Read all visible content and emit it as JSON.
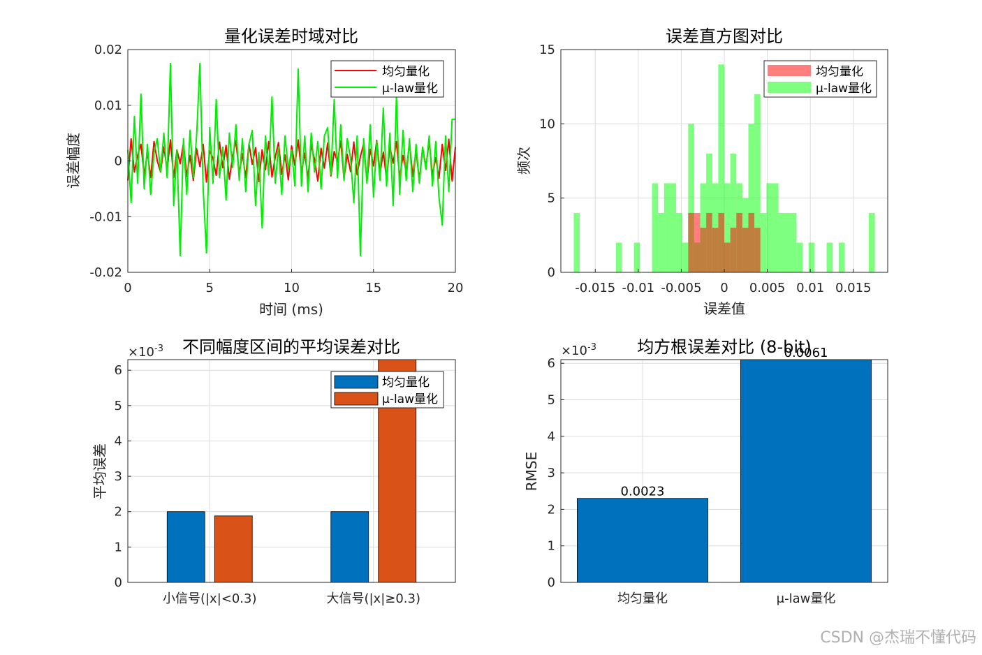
{
  "watermark": "CSDN @杰瑞不懂代码",
  "chart_data": [
    {
      "id": "time",
      "type": "line",
      "title": "量化误差时域对比",
      "xlabel": "时间 (ms)",
      "ylabel": "误差幅度",
      "xlim": [
        0,
        20
      ],
      "ylim": [
        -0.02,
        0.02
      ],
      "xticks": [
        0,
        5,
        10,
        15,
        20
      ],
      "xtick_labels": [
        "0",
        "5",
        "10",
        "15",
        "20"
      ],
      "yticks": [
        -0.02,
        -0.01,
        0,
        0.01,
        0.02
      ],
      "ytick_labels": [
        "-0.02",
        "-0.01",
        "0",
        "0.01",
        "0.02"
      ],
      "grid": true,
      "legend": "top-right",
      "series": [
        {
          "name": "均匀量化",
          "color": "#ff0000",
          "x": [
            0,
            0.2,
            0.4,
            0.6,
            0.8,
            1,
            1.2,
            1.4,
            1.6,
            1.8,
            2,
            2.2,
            2.4,
            2.6,
            2.8,
            3,
            3.2,
            3.4,
            3.6,
            3.8,
            4,
            4.2,
            4.4,
            4.6,
            4.8,
            5,
            5.2,
            5.4,
            5.6,
            5.8,
            6,
            6.2,
            6.4,
            6.6,
            6.8,
            7,
            7.2,
            7.4,
            7.6,
            7.8,
            8,
            8.2,
            8.4,
            8.6,
            8.8,
            9,
            9.2,
            9.4,
            9.6,
            9.8,
            10,
            10.2,
            10.4,
            10.6,
            10.8,
            11,
            11.2,
            11.4,
            11.6,
            11.8,
            12,
            12.2,
            12.4,
            12.6,
            12.8,
            13,
            13.2,
            13.4,
            13.6,
            13.8,
            14,
            14.2,
            14.4,
            14.6,
            14.8,
            15,
            15.2,
            15.4,
            15.6,
            15.8,
            16,
            16.2,
            16.4,
            16.6,
            16.8,
            17,
            17.2,
            17.4,
            17.6,
            17.8,
            18,
            18.2,
            18.4,
            18.6,
            18.8,
            19,
            19.2,
            19.4,
            19.6,
            19.8,
            20
          ],
          "values": [
            -0.0035,
            0.004,
            -0.002,
            0.001,
            0.003,
            -0.0025,
            0.0015,
            -0.003,
            0.0035,
            0,
            -0.002,
            0.0025,
            -0.0015,
            0.0038,
            -0.003,
            0.002,
            -0.0005,
            0.0032,
            -0.0028,
            0.001,
            -0.0035,
            0.0022,
            -0.001,
            0.003,
            -0.0038,
            0.0018,
            0.0005,
            -0.0026,
            0.0034,
            -0.0012,
            0.0028,
            -0.0033,
            0.0009,
            0.0036,
            -0.0022,
            0.0013,
            -0.003,
            0.0031,
            -0.0006,
            0.0024,
            -0.0037,
            0.002,
            -0.0016,
            0.0035,
            -0.0029,
            0.0007,
            0.0033,
            -0.0024,
            0.0011,
            -0.0034,
            0.0027,
            -0.0008,
            0.0038,
            -0.0021,
            0.0014,
            -0.0031,
            0.0029,
            0.0003,
            -0.0036,
            0.0023,
            -0.0013,
            0.0032,
            -0.0027,
            0.0017,
            -0.0002,
            0.0036,
            -0.0032,
            0.0012,
            -0.0019,
            0.0034,
            -0.0025,
            0.0008,
            0.0031,
            -0.0037,
            0.0021,
            -0.0009,
            0.0037,
            -0.0023,
            0.0016,
            -0.0033,
            0.0026,
            -0.0004,
            0.0035,
            -0.003,
            0.001,
            -0.002,
            0.0033,
            -0.0028,
            0.0019,
            -0.0035,
            0.0024,
            -0.0011,
            0.0036,
            -0.0026,
            0.0006,
            -0.0031,
            0.003,
            -0.0017,
            0.0039,
            -0.0036,
            0.0025
          ]
        },
        {
          "name": "μ-law量化",
          "color": "#00ee00",
          "x": [
            0,
            0.2,
            0.4,
            0.6,
            0.8,
            1,
            1.2,
            1.4,
            1.6,
            1.8,
            2,
            2.2,
            2.4,
            2.6,
            2.8,
            3,
            3.2,
            3.4,
            3.6,
            3.8,
            4,
            4.2,
            4.4,
            4.6,
            4.8,
            5,
            5.2,
            5.4,
            5.6,
            5.8,
            6,
            6.2,
            6.4,
            6.6,
            6.8,
            7,
            7.2,
            7.4,
            7.6,
            7.8,
            8,
            8.2,
            8.4,
            8.6,
            8.8,
            9,
            9.2,
            9.4,
            9.6,
            9.8,
            10,
            10.2,
            10.4,
            10.6,
            10.8,
            11,
            11.2,
            11.4,
            11.6,
            11.8,
            12,
            12.2,
            12.4,
            12.6,
            12.8,
            13,
            13.2,
            13.4,
            13.6,
            13.8,
            14,
            14.2,
            14.4,
            14.6,
            14.8,
            15,
            15.2,
            15.4,
            15.6,
            15.8,
            16,
            16.2,
            16.4,
            16.6,
            16.8,
            17,
            17.2,
            17.4,
            17.6,
            17.8,
            18,
            18.2,
            18.4,
            18.6,
            18.8,
            19,
            19.2,
            19.4,
            19.6,
            19.8,
            20
          ],
          "values": [
            0.002,
            -0.0075,
            0.008,
            -0.004,
            0.012,
            -0.005,
            0.003,
            -0.006,
            0.0015,
            0.004,
            -0.002,
            0.005,
            -0.003,
            0.0175,
            -0.008,
            0.002,
            -0.017,
            0.004,
            -0.006,
            0.0055,
            -0.003,
            0.0045,
            0.0175,
            -0.005,
            -0.0165,
            0.006,
            -0.004,
            0.011,
            -0.003,
            0.0025,
            -0.007,
            0.005,
            -0.0012,
            0.0065,
            -0.0035,
            0.004,
            -0.0055,
            0.003,
            0.0055,
            -0.008,
            0.0015,
            -0.012,
            0.0045,
            -0.0025,
            0.0115,
            -0.004,
            0.0025,
            -0.006,
            0.0045,
            -0.0015,
            0.002,
            -0.0045,
            0.0165,
            -0.0045,
            0.0045,
            -0.0055,
            0.005,
            -0.002,
            0.0035,
            -0.005,
            0.0045,
            0.006,
            -0.0025,
            0.011,
            -0.003,
            0.0065,
            -0.0035,
            0.004,
            0.0005,
            -0.0075,
            0.0045,
            -0.017,
            0.004,
            -0.004,
            0.0065,
            -0.0065,
            0.0035,
            -0.0035,
            0.0095,
            -0.0045,
            0.005,
            -0.008,
            0.0115,
            -0.006,
            0.0055,
            -0.0035,
            0.004,
            -0.0055,
            0.003,
            -0.004,
            0.0025,
            -0.0015,
            0.0045,
            -0.0045,
            0.0035,
            -0.0065,
            -0.0115,
            0.0045,
            -0.0055,
            0.0075,
            0.0075
          ]
        }
      ]
    },
    {
      "id": "hist",
      "type": "bar",
      "title": "误差直方图对比",
      "xlabel": "误差值",
      "ylabel": "频次",
      "xlim": [
        -0.019,
        0.019
      ],
      "ylim": [
        0,
        15
      ],
      "xticks": [
        -0.015,
        -0.01,
        -0.005,
        0,
        0.005,
        0.01,
        0.015
      ],
      "xtick_labels": [
        "-0.015",
        "-0.01",
        "-0.005",
        "0",
        "0.005",
        "0.01",
        "0.015"
      ],
      "yticks": [
        0,
        5,
        10,
        15
      ],
      "ytick_labels": [
        "0",
        "5",
        "10",
        "15"
      ],
      "grid": true,
      "legend": "top-right",
      "bin_width": 0.0007,
      "series": [
        {
          "name": "均匀量化",
          "color": "#ff0000",
          "bin_centers": [
            -0.00385,
            -0.00315,
            -0.00245,
            -0.00175,
            -0.00105,
            -0.00035,
            0.00035,
            0.00105,
            0.00175,
            0.00245,
            0.00315,
            0.00385
          ],
          "values": [
            4,
            4,
            3,
            4,
            3,
            4,
            2,
            3,
            4,
            3,
            4,
            3
          ]
        },
        {
          "name": "μ-law量化",
          "color": "#00ff00",
          "bin_centers": [
            -0.01715,
            -0.01225,
            -0.01015,
            -0.00805,
            -0.00735,
            -0.00665,
            -0.00595,
            -0.00525,
            -0.00455,
            -0.00385,
            -0.00315,
            -0.00245,
            -0.00175,
            -0.00105,
            -0.00035,
            0.00035,
            0.00105,
            0.00175,
            0.00245,
            0.00315,
            0.00385,
            0.00455,
            0.00525,
            0.00595,
            0.00665,
            0.00735,
            0.00805,
            0.00875,
            0.01015,
            0.01225,
            0.01365,
            0.01715
          ],
          "values": [
            4,
            2,
            2,
            6,
            4,
            6,
            6,
            4,
            2,
            10,
            2,
            6,
            8,
            6,
            14,
            6,
            8,
            6,
            5,
            10,
            12,
            4,
            6,
            6,
            4,
            4,
            4,
            2,
            2,
            2,
            2,
            4
          ]
        }
      ]
    },
    {
      "id": "region",
      "type": "bar",
      "title": "不同幅度区间的平均误差对比",
      "exponent_label": "×10",
      "exponent_power": "-3",
      "xlabel": "",
      "ylabel": "平均误差",
      "categories": [
        "小信号(|x|<0.3)",
        "大信号(|x|≥0.3)"
      ],
      "ylim": [
        0,
        6.3
      ],
      "yticks": [
        0,
        1,
        2,
        3,
        4,
        5,
        6
      ],
      "ytick_labels": [
        "0",
        "1",
        "2",
        "3",
        "4",
        "5",
        "6"
      ],
      "grid": true,
      "legend": "top-right",
      "series": [
        {
          "name": "均匀量化",
          "color": "#0072bd",
          "values": [
            2.0,
            2.0
          ]
        },
        {
          "name": "μ-law量化",
          "color": "#d95319",
          "values": [
            1.88,
            6.3
          ]
        }
      ]
    },
    {
      "id": "rmse",
      "type": "bar",
      "title": "均方根误差对比 (8-bit)",
      "exponent_label": "×10",
      "exponent_power": "-3",
      "xlabel": "",
      "ylabel": "RMSE",
      "categories": [
        "均匀量化",
        "μ-law量化"
      ],
      "ylim": [
        0,
        6.1
      ],
      "yticks": [
        0,
        1,
        2,
        3,
        4,
        5,
        6
      ],
      "ytick_labels": [
        "0",
        "1",
        "2",
        "3",
        "4",
        "5",
        "6"
      ],
      "grid": true,
      "values": [
        2.3,
        6.1
      ],
      "data_labels": [
        "0.0023",
        "0.0061"
      ],
      "color": "#0072bd"
    }
  ]
}
